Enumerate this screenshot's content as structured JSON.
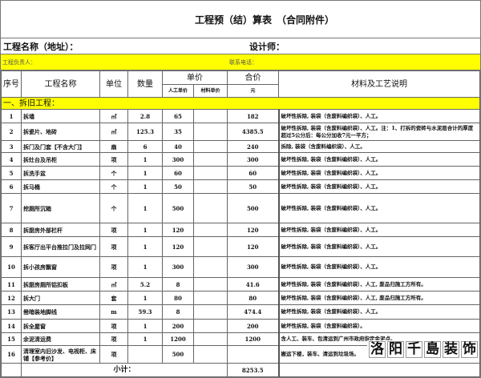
{
  "title": "工程预（结）算表　（合同附件）",
  "project_name_label": "工程名称（地址）：",
  "designer_label": "设计师：",
  "manager_label": "工程负责人：",
  "phone_label": "联系电话：",
  "headers": {
    "seq": "序号",
    "name": "工程名称",
    "unit": "单位",
    "qty": "数量",
    "unit_price": "单价",
    "labor_price": "人工单价",
    "material_price": "材料单价",
    "total": "合价",
    "total_unit": "元",
    "description": "材料及工艺说明"
  },
  "section": "一、拆旧工程：",
  "rows": [
    {
      "seq": "1",
      "name": "拆墙",
      "unit": "㎡",
      "qty": "2.8",
      "labor": "65",
      "material": "",
      "total": "182",
      "desc": "破坏性拆除, 装袋（含废料编织袋）、人工。"
    },
    {
      "seq": "2",
      "name": "拆瓷片、地砖",
      "unit": "㎡",
      "qty": "125.3",
      "labor": "35",
      "material": "",
      "total": "4385.5",
      "desc": "破坏性拆除, 装袋（含废料编织袋）、人工。注：1、打拆的瓷砖与水泥层合计的厚度超过5公分后：每公分加收7元一平方；"
    },
    {
      "seq": "3",
      "name": "拆门及门套【不含大门】",
      "unit": "扇",
      "qty": "6",
      "labor": "40",
      "material": "",
      "total": "240",
      "desc": "拆除, 装袋（含废料编织袋）、人工。"
    },
    {
      "seq": "4",
      "name": "拆灶台及吊柜",
      "unit": "项",
      "qty": "1",
      "labor": "300",
      "material": "",
      "total": "300",
      "desc": "破坏性拆除, 装袋（含废料编织袋）、人工。"
    },
    {
      "seq": "5",
      "name": "拆洗手盆",
      "unit": "个",
      "qty": "1",
      "labor": "60",
      "material": "",
      "total": "60",
      "desc": "破坏性拆除, 装袋（含废料编织袋）、人工。"
    },
    {
      "seq": "6",
      "name": "拆马桶",
      "unit": "个",
      "qty": "1",
      "labor": "50",
      "material": "",
      "total": "50",
      "desc": "破坏性拆除, 装袋（含废料编织袋）、人工。"
    },
    {
      "seq": "7",
      "name": "挖厕所沉箱",
      "unit": "个",
      "qty": "1",
      "labor": "500",
      "material": "",
      "total": "500",
      "desc": "破坏性拆除, 装袋（含废料编织袋）、人工。"
    },
    {
      "seq": "8",
      "name": "拆厨房外部栏杆",
      "unit": "项",
      "qty": "1",
      "labor": "120",
      "material": "",
      "total": "120",
      "desc": "破坏性拆除, 装袋（含废料编织袋）、人工。"
    },
    {
      "seq": "9",
      "name": "拆客厅出平台推拉门及拉网门",
      "unit": "项",
      "qty": "1",
      "labor": "120",
      "material": "",
      "total": "120",
      "desc": "破坏性拆除, 装袋（含废料编织袋）、人工。"
    },
    {
      "seq": "10",
      "name": "拆小孩房飘窗",
      "unit": "项",
      "qty": "1",
      "labor": "300",
      "material": "",
      "total": "300",
      "desc": "破坏性拆除, 装袋（含废料编织袋）、人工。"
    },
    {
      "seq": "11",
      "name": "拆厨房厕所铝扣板",
      "unit": "㎡",
      "qty": "5.2",
      "labor": "8",
      "material": "",
      "total": "41.6",
      "desc": "破坏性拆除, 装袋（含废料编织袋）、人工, 废品归施工方所有。"
    },
    {
      "seq": "12",
      "name": "拆大门",
      "unit": "套",
      "qty": "1",
      "labor": "80",
      "material": "",
      "total": "80",
      "desc": "破坏性拆除, 装袋（含废料编织袋）、人工, 废品归施工方所有。"
    },
    {
      "seq": "13",
      "name": "凿暗装地脚线",
      "unit": "m",
      "qty": "59.3",
      "labor": "8",
      "material": "",
      "total": "474.4",
      "desc": "破坏性拆除, 装袋（含废料编织袋）、人工。"
    },
    {
      "seq": "14",
      "name": "拆全屋窗",
      "unit": "项",
      "qty": "1",
      "labor": "200",
      "material": "",
      "total": "200",
      "desc": "破坏性拆除, 装袋（含废料编织袋）。"
    },
    {
      "seq": "15",
      "name": "余泥清运费",
      "unit": "项",
      "qty": "1",
      "labor": "1200",
      "material": "",
      "total": "1200",
      "desc": "含人工、装车、包清运到广州市政府指定余泥点。"
    },
    {
      "seq": "16",
      "name": "清理室内旧沙发、电视柜、床铺【参考价】",
      "unit": "项",
      "qty": "",
      "labor": "500",
      "material": "",
      "total": "",
      "desc": "搬运下楼，装车、清运到垃圾场。"
    }
  ],
  "subtotal_label": "小计：",
  "subtotal_value": "8253.5",
  "watermark": [
    "洛",
    "阳",
    "千",
    "島",
    "装",
    "饰"
  ],
  "colors": {
    "highlight": "#ffff00",
    "border": "#666666"
  }
}
